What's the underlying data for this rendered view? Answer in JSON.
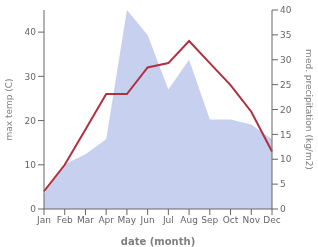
{
  "chart_data": {
    "type": "line",
    "xlabel": "date (month)",
    "ylabel": "max temp (C)",
    "y2label": "med. precipitation (kg/m2)",
    "categories": [
      "Jan",
      "Feb",
      "Mar",
      "Apr",
      "May",
      "Jun",
      "Jul",
      "Aug",
      "Sep",
      "Oct",
      "Nov",
      "Dec"
    ],
    "series": [
      {
        "type": "area",
        "axis": "y2",
        "color": "#c8d0f0",
        "values": [
          3,
          9,
          11,
          14,
          40,
          35,
          24,
          30,
          18,
          18,
          17,
          14
        ]
      },
      {
        "type": "line",
        "color": "#b03040",
        "values": [
          4,
          10,
          18,
          26,
          26,
          32,
          33,
          38,
          33,
          28,
          22,
          13
        ]
      }
    ],
    "ylim": [
      0,
      45
    ],
    "yticks": [
      0,
      10,
      20,
      30,
      40
    ],
    "y2lim": [
      0,
      40
    ],
    "y2ticks": [
      0,
      5,
      10,
      15,
      20,
      25,
      30,
      35,
      40
    ]
  }
}
